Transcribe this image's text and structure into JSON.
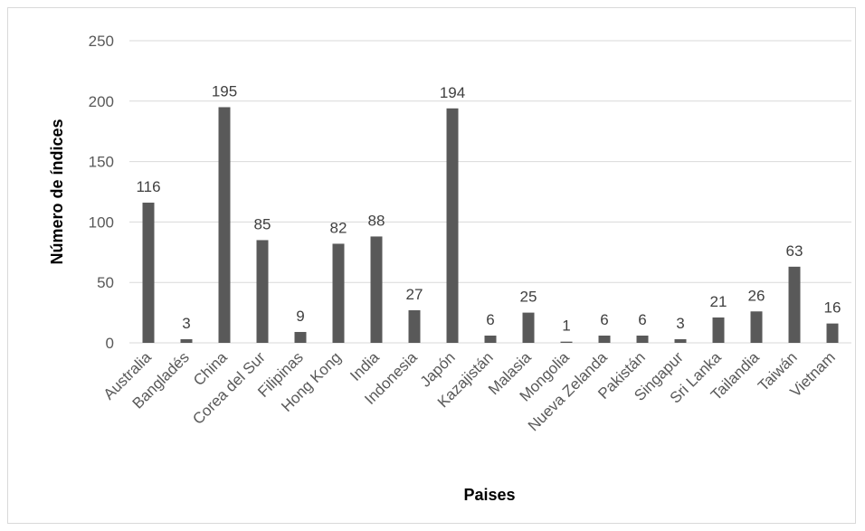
{
  "chart_data": {
    "type": "bar",
    "title": "",
    "xlabel": "Paises",
    "ylabel": "Número de índices",
    "categories": [
      "Australia",
      "Bangladés",
      "China",
      "Corea del Sur",
      "Filipinas",
      "Hong Kong",
      "India",
      "Indonesia",
      "Japón",
      "Kazajistán",
      "Malasia",
      "Mongolia",
      "Nueva Zelanda",
      "Pakistán",
      "Singapur",
      "Sri Lanka",
      "Tailandia",
      "Taiwán",
      "Vietnam"
    ],
    "values": [
      116,
      3,
      195,
      85,
      9,
      82,
      88,
      27,
      194,
      6,
      25,
      1,
      6,
      6,
      3,
      21,
      26,
      63,
      16
    ],
    "ylim": [
      0,
      250
    ],
    "yticks": [
      0,
      50,
      100,
      150,
      200,
      250
    ],
    "grid": true,
    "bar_color": "#595959",
    "grid_color": "#d9d9d9"
  }
}
